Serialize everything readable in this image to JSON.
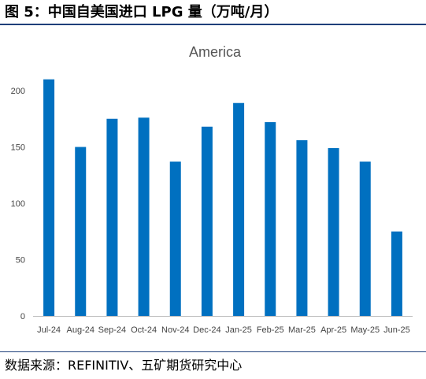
{
  "figure_title": "图 5：中国自美国进口 LPG 量（万吨/月）",
  "source": "数据来源：REFINITIV、五矿期货研究中心",
  "colors": {
    "bar": "#0070c0",
    "axis": "#bfbfbf",
    "rule": "#1f3f7a"
  },
  "chart_data": {
    "type": "bar",
    "title": "America",
    "xlabel": "",
    "ylabel": "",
    "categories": [
      "Jul-24",
      "Aug-24",
      "Sep-24",
      "Oct-24",
      "Nov-24",
      "Dec-24",
      "Jan-25",
      "Feb-25",
      "Mar-25",
      "Apr-25",
      "May-25",
      "Jun-25"
    ],
    "values": [
      210,
      150,
      175,
      176,
      137,
      168,
      189,
      172,
      156,
      149,
      137,
      75
    ],
    "ylim": [
      0,
      220
    ],
    "yticks": [
      0,
      50,
      100,
      150,
      200
    ],
    "grid": false,
    "legend": "none"
  }
}
